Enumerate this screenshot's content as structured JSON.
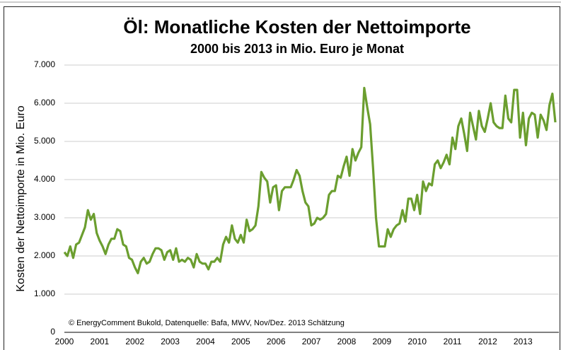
{
  "chart_data": {
    "type": "line",
    "title": "Öl: Monatliche Kosten der Nettoimporte",
    "subtitle": "2000 bis 2013 in Mio. Euro je Monat",
    "y_label": "Kosten der Nettoimporte in Mio. Euro",
    "annotation": "© EnergyComment Bukold, Datenquelle: Bafa, MWV, Nov/Dez. 2013 Schätzung",
    "categories": [
      "2000",
      null,
      null,
      null,
      null,
      null,
      null,
      null,
      null,
      null,
      null,
      null,
      "2001",
      null,
      null,
      null,
      null,
      null,
      null,
      null,
      null,
      null,
      null,
      null,
      "2002",
      null,
      null,
      null,
      null,
      null,
      null,
      null,
      null,
      null,
      null,
      null,
      "2003",
      null,
      null,
      null,
      null,
      null,
      null,
      null,
      null,
      null,
      null,
      null,
      "2004",
      null,
      null,
      null,
      null,
      null,
      null,
      null,
      null,
      null,
      null,
      null,
      "2005",
      null,
      null,
      null,
      null,
      null,
      null,
      null,
      null,
      null,
      null,
      null,
      "2006",
      null,
      null,
      null,
      null,
      null,
      null,
      null,
      null,
      null,
      null,
      null,
      "2007",
      null,
      null,
      null,
      null,
      null,
      null,
      null,
      null,
      null,
      null,
      null,
      "2008",
      null,
      null,
      null,
      null,
      null,
      null,
      null,
      null,
      null,
      null,
      null,
      "2009",
      null,
      null,
      null,
      null,
      null,
      null,
      null,
      null,
      null,
      null,
      null,
      "2010",
      null,
      null,
      null,
      null,
      null,
      null,
      null,
      null,
      null,
      null,
      null,
      "2011",
      null,
      null,
      null,
      null,
      null,
      null,
      null,
      null,
      null,
      null,
      null,
      "2012",
      null,
      null,
      null,
      null,
      null,
      null,
      null,
      null,
      null,
      null,
      null,
      "2013",
      null,
      null,
      null,
      null,
      null,
      null,
      null,
      null,
      null,
      null,
      null
    ],
    "values": [
      2100,
      2000,
      2250,
      1950,
      2300,
      2350,
      2550,
      2750,
      3200,
      2950,
      3100,
      2600,
      2400,
      2250,
      2050,
      2300,
      2450,
      2450,
      2700,
      2650,
      2300,
      2250,
      1950,
      1900,
      1700,
      1550,
      1850,
      1950,
      1800,
      1850,
      2050,
      2200,
      2200,
      2150,
      1900,
      2100,
      2150,
      1900,
      2200,
      1850,
      1900,
      1850,
      1950,
      1900,
      1700,
      2050,
      1850,
      1800,
      1800,
      1650,
      1850,
      1850,
      1950,
      1850,
      2300,
      2500,
      2350,
      2800,
      2450,
      2350,
      2550,
      2350,
      2950,
      2650,
      2700,
      2800,
      3300,
      4200,
      4050,
      3950,
      3400,
      3800,
      3850,
      3200,
      3700,
      3800,
      3800,
      3800,
      4000,
      4250,
      4100,
      3700,
      3400,
      3300,
      2800,
      2850,
      3000,
      2950,
      3000,
      3100,
      3600,
      3700,
      3700,
      4100,
      4050,
      4350,
      4600,
      4100,
      4800,
      4500,
      4700,
      4850,
      6400,
      5900,
      5450,
      4300,
      3000,
      2250,
      2250,
      2250,
      2700,
      2500,
      2700,
      2800,
      2850,
      3200,
      2900,
      3500,
      3500,
      3200,
      3600,
      3100,
      3950,
      3700,
      3900,
      3850,
      4400,
      4500,
      4300,
      4450,
      4650,
      4400,
      5100,
      4800,
      5400,
      5600,
      5200,
      4750,
      5750,
      5400,
      5050,
      5800,
      5400,
      5250,
      5600,
      6000,
      5500,
      5400,
      5350,
      5350,
      6200,
      5600,
      5500,
      6350,
      6350,
      5100,
      5750,
      4900,
      5600,
      5750,
      5700,
      5100,
      5700,
      5550,
      5300,
      5950,
      6250,
      5500
    ],
    "color": "#6b9e2f",
    "ylim": [
      0,
      7000
    ],
    "yticks": [
      0,
      {
        "value": 1000,
        "label": "1.000"
      },
      {
        "value": 2000,
        "label": "2.000"
      },
      {
        "value": 3000,
        "label": "3.000"
      },
      {
        "value": 4000,
        "label": "4.000"
      },
      {
        "value": 5000,
        "label": "5.000"
      },
      {
        "value": 6000,
        "label": "6.000"
      },
      {
        "value": 7000,
        "label": "7.000"
      }
    ],
    "grid": true
  }
}
